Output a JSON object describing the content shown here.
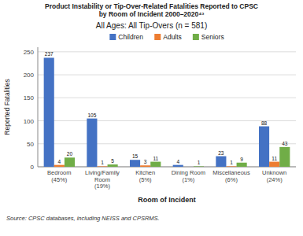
{
  "chart_data": {
    "type": "bar",
    "title": "Product Instability or Tip-Over-Related Fatalities Reported to CPSC\nby Room of Incident 2000–2020⁴³",
    "subtitle": "All Ages: All Tip-Overs (n = 581)",
    "xlabel": "Room of Incident",
    "ylabel": "Reported Fatalities",
    "annotations": [
      "Source: CPSC databases, including NEISS and CPSRMS."
    ],
    "categories": [
      "Bedroom\n(45%)",
      "Living/Family\nRoom\n(19%)",
      "Kitchen\n(5%)",
      "Dining Room\n(1%)",
      "Miscellaneous\n(6%)",
      "Unknown\n(24%)"
    ],
    "series": [
      {
        "name": "Children",
        "color": "#4472C4",
        "values": [
          237,
          105,
          15,
          4,
          23,
          88
        ]
      },
      {
        "name": "Adults",
        "color": "#ED7D31",
        "values": [
          4,
          1,
          3,
          0,
          1,
          11
        ]
      },
      {
        "name": "Seniors",
        "color": "#70AD47",
        "values": [
          20,
          5,
          11,
          1,
          9,
          43
        ]
      }
    ],
    "ylim": [
      0,
      260
    ],
    "yticks": [
      0,
      50,
      100,
      150,
      200,
      250
    ],
    "grid": true,
    "legend": "top",
    "data_labels": true
  }
}
